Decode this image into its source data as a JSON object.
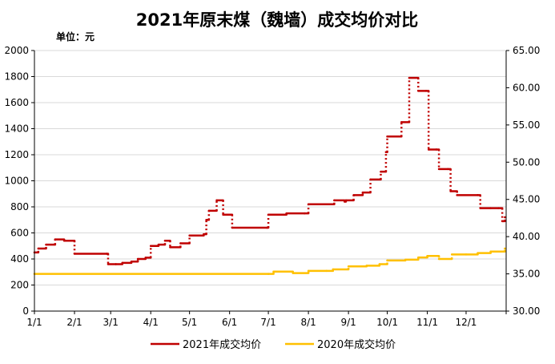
{
  "chart_data": {
    "type": "line",
    "title": "2021年原末煤（魏墙）成交均价对比",
    "unit_label": "单位：元",
    "x_ticks": [
      "1/1",
      "2/1",
      "3/1",
      "4/1",
      "5/1",
      "6/1",
      "7/1",
      "8/1",
      "9/1",
      "10/1",
      "11/1",
      "12/1"
    ],
    "y_left": {
      "min": 0,
      "max": 2000,
      "step": 200,
      "ticks": [
        "0",
        "200",
        "400",
        "600",
        "800",
        "1000",
        "1200",
        "1400",
        "1600",
        "1800",
        "2000"
      ]
    },
    "y_right": {
      "min": 30,
      "max": 65,
      "step": 5,
      "ticks": [
        "30.00",
        "35.00",
        "40.00",
        "45.00",
        "50.00",
        "55.00",
        "60.00",
        "65.00"
      ]
    },
    "grid": "horizontal",
    "legend_position": "bottom",
    "series": [
      {
        "name": "2021年成交均价",
        "color": "#c00000",
        "axis": "left",
        "points": [
          [
            "1/1",
            450
          ],
          [
            "1/4",
            480
          ],
          [
            "1/10",
            510
          ],
          [
            "1/17",
            550
          ],
          [
            "1/24",
            540
          ],
          [
            "1/31",
            540
          ],
          [
            "2/1",
            440
          ],
          [
            "2/26",
            440
          ],
          [
            "2/27",
            360
          ],
          [
            "3/5",
            360
          ],
          [
            "3/10",
            370
          ],
          [
            "3/17",
            380
          ],
          [
            "3/22",
            400
          ],
          [
            "3/28",
            410
          ],
          [
            "4/1",
            500
          ],
          [
            "4/7",
            510
          ],
          [
            "4/12",
            540
          ],
          [
            "4/16",
            490
          ],
          [
            "4/24",
            520
          ],
          [
            "5/1",
            580
          ],
          [
            "5/12",
            590
          ],
          [
            "5/14",
            700
          ],
          [
            "5/16",
            770
          ],
          [
            "5/22",
            850
          ],
          [
            "5/27",
            740
          ],
          [
            "6/1",
            740
          ],
          [
            "6/3",
            640
          ],
          [
            "6/30",
            640
          ],
          [
            "7/1",
            740
          ],
          [
            "7/15",
            750
          ],
          [
            "7/29",
            750
          ],
          [
            "8/1",
            820
          ],
          [
            "8/15",
            820
          ],
          [
            "8/21",
            850
          ],
          [
            "8/29",
            840
          ],
          [
            "8/30",
            850
          ],
          [
            "9/5",
            890
          ],
          [
            "9/12",
            910
          ],
          [
            "9/18",
            1010
          ],
          [
            "9/26",
            1070
          ],
          [
            "9/30",
            1220
          ],
          [
            "10/1",
            1340
          ],
          [
            "10/10",
            1340
          ],
          [
            "10/12",
            1450
          ],
          [
            "10/18",
            1790
          ],
          [
            "10/25",
            1690
          ],
          [
            "10/31",
            1690
          ],
          [
            "11/2",
            1240
          ],
          [
            "11/8",
            1240
          ],
          [
            "11/10",
            1090
          ],
          [
            "11/17",
            1090
          ],
          [
            "11/19",
            920
          ],
          [
            "11/24",
            890
          ],
          [
            "12/10",
            890
          ],
          [
            "12/12",
            790
          ],
          [
            "12/20",
            790
          ],
          [
            "12/26",
            790
          ],
          [
            "12/29",
            690
          ],
          [
            "12/31",
            720
          ]
        ]
      },
      {
        "name": "2020年成交均价",
        "color": "#ffc000",
        "axis": "right",
        "points": [
          [
            "1/1",
            35.0
          ],
          [
            "7/1",
            35.0
          ],
          [
            "7/5",
            35.3
          ],
          [
            "7/15",
            35.3
          ],
          [
            "7/20",
            35.1
          ],
          [
            "8/1",
            35.4
          ],
          [
            "8/15",
            35.4
          ],
          [
            "8/20",
            35.6
          ],
          [
            "9/1",
            36.0
          ],
          [
            "9/15",
            36.1
          ],
          [
            "9/25",
            36.3
          ],
          [
            "10/1",
            36.8
          ],
          [
            "10/15",
            36.9
          ],
          [
            "10/25",
            37.2
          ],
          [
            "11/1",
            37.4
          ],
          [
            "11/10",
            37.0
          ],
          [
            "11/20",
            37.6
          ],
          [
            "12/1",
            37.6
          ],
          [
            "12/10",
            37.8
          ],
          [
            "12/20",
            38.0
          ],
          [
            "12/31",
            38.4
          ]
        ]
      }
    ]
  }
}
